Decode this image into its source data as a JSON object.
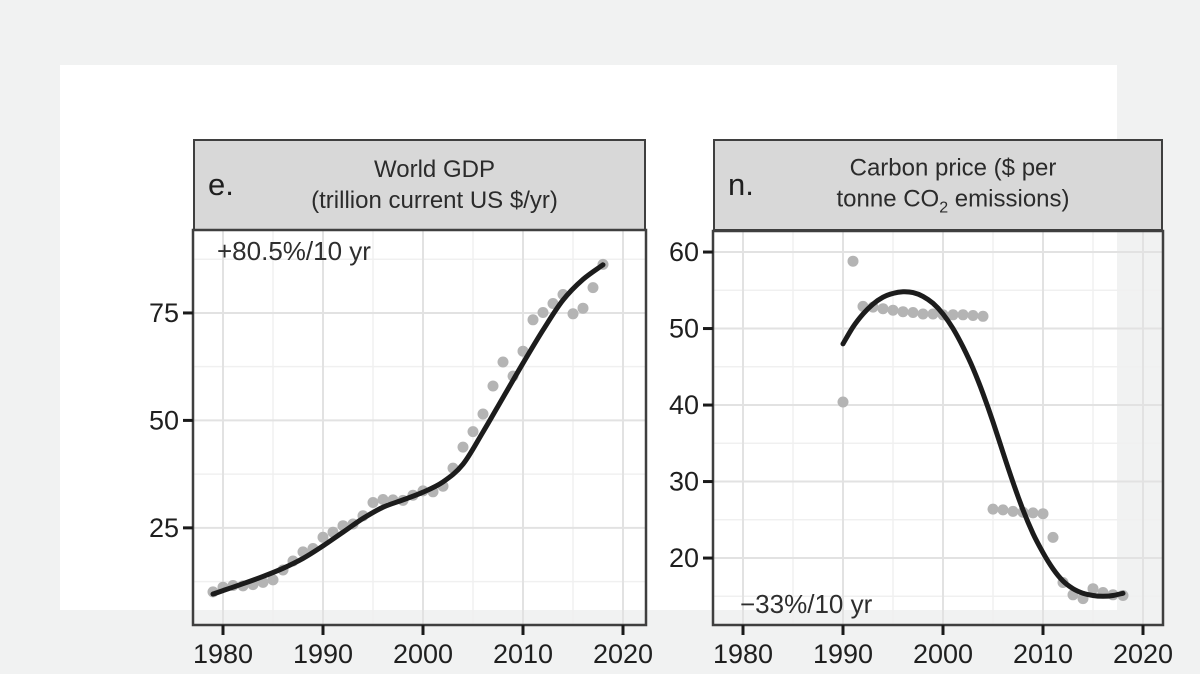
{
  "page": {
    "background_color": "#f1f2f2",
    "figure_background_color": "#ffffff",
    "header_fill_color": "#d8d8d8",
    "panel_border_color": "#3f3f3f",
    "grid_major_color": "#e2e2e2",
    "grid_minor_color": "#f0f0f0",
    "tick_color": "#1a1a1a",
    "text_color": "#2b2b2b"
  },
  "chart_data": [
    {
      "id": "e",
      "type": "scatter",
      "panel_letter": "e.",
      "title_lines": [
        "World GDP",
        "(trillion current US $/yr)"
      ],
      "annotation": "+80.5%/10 yr",
      "annotation_corner": "top-left",
      "xlabel": "",
      "ylabel": "",
      "xlim": [
        1977,
        2022.3
      ],
      "ylim": [
        2.4,
        94.3
      ],
      "xticks": [
        1980,
        1990,
        2000,
        2010,
        2020
      ],
      "xticks_minor": [
        1985,
        1995,
        2005,
        2015
      ],
      "yticks": [
        25,
        50,
        75
      ],
      "yticks_minor": [
        12.5,
        37.5,
        62.5,
        87.5
      ],
      "grid": true,
      "legend": "none",
      "point_color": "#b4b4b4",
      "line_color": "#1c1c1c",
      "x": [
        1979,
        1980,
        1981,
        1982,
        1983,
        1984,
        1985,
        1986,
        1987,
        1988,
        1989,
        1990,
        1991,
        1992,
        1993,
        1994,
        1995,
        1996,
        1997,
        1998,
        1999,
        2000,
        2001,
        2002,
        2003,
        2004,
        2005,
        2006,
        2007,
        2008,
        2009,
        2010,
        2011,
        2012,
        2013,
        2014,
        2015,
        2016,
        2017,
        2018
      ],
      "y": [
        10.1,
        11.2,
        11.6,
        11.5,
        11.8,
        12.3,
        12.9,
        15.2,
        17.3,
        19.4,
        20.2,
        22.8,
        24.0,
        25.5,
        25.9,
        27.8,
        30.9,
        31.6,
        31.5,
        31.4,
        32.6,
        33.6,
        33.4,
        34.7,
        38.9,
        43.8,
        47.4,
        51.5,
        58.0,
        63.6,
        60.3,
        66.1,
        73.4,
        75.1,
        77.2,
        79.3,
        74.8,
        76.1,
        80.9,
        86.3
      ],
      "trend": {
        "x": [
          1979,
          1980,
          1982,
          1984,
          1986,
          1988,
          1990,
          1992,
          1994,
          1996,
          1998,
          2000,
          2002,
          2004,
          2006,
          2008,
          2010,
          2012,
          2014,
          2016,
          2018
        ],
        "y": [
          9.6,
          10.4,
          12.0,
          13.7,
          15.6,
          17.9,
          20.8,
          24.0,
          27.2,
          29.8,
          31.5,
          33.3,
          35.7,
          39.8,
          47.3,
          55.3,
          63.3,
          71.0,
          78.0,
          82.8,
          86.2
        ]
      }
    },
    {
      "id": "n",
      "type": "scatter",
      "panel_letter": "n.",
      "title_line1": "Carbon price ($ per",
      "title_line2": {
        "pre": "tonne CO",
        "sub": "2",
        "post": " emissions)"
      },
      "annotation": "−33%/10 yr",
      "annotation_corner": "bottom-left",
      "xlabel": "",
      "ylabel": "",
      "xlim": [
        1977,
        2022
      ],
      "ylim": [
        11.25,
        62.75
      ],
      "xticks": [
        1980,
        1990,
        2000,
        2010,
        2020
      ],
      "xticks_minor": [
        1985,
        1995,
        2005,
        2015
      ],
      "yticks": [
        20,
        30,
        40,
        50,
        60
      ],
      "yticks_minor": [
        15,
        25,
        35,
        45,
        55
      ],
      "grid": true,
      "legend": "none",
      "point_color": "#b4b4b4",
      "line_color": "#1c1c1c",
      "x": [
        1990,
        1991,
        1992,
        1993,
        1994,
        1995,
        1996,
        1997,
        1998,
        1999,
        2000,
        2001,
        2002,
        2003,
        2004,
        2005,
        2006,
        2007,
        2008,
        2009,
        2010,
        2011,
        2012,
        2013,
        2014,
        2015,
        2016,
        2017,
        2018
      ],
      "y": [
        40.4,
        58.8,
        52.9,
        52.8,
        52.6,
        52.4,
        52.2,
        52.1,
        51.9,
        51.9,
        51.8,
        51.8,
        51.8,
        51.7,
        51.6,
        26.4,
        26.3,
        26.1,
        26.0,
        25.9,
        25.8,
        22.7,
        16.8,
        15.2,
        14.7,
        16.0,
        15.5,
        15.2,
        15.1
      ],
      "trend": {
        "x": [
          1990,
          1991,
          1992,
          1993,
          1994,
          1995,
          1996,
          1997,
          1998,
          1999,
          2000,
          2001,
          2002,
          2003,
          2004,
          2005,
          2006,
          2007,
          2008,
          2009,
          2010,
          2011,
          2012,
          2013,
          2014,
          2015,
          2016,
          2017,
          2018
        ],
        "y": [
          48.0,
          50.2,
          51.9,
          53.2,
          54.1,
          54.6,
          54.8,
          54.7,
          54.2,
          53.3,
          51.9,
          50.0,
          47.6,
          44.8,
          41.5,
          37.8,
          33.8,
          29.9,
          26.3,
          23.2,
          20.7,
          18.6,
          17.0,
          16.0,
          15.4,
          15.1,
          15.0,
          15.1,
          15.4
        ]
      }
    }
  ]
}
